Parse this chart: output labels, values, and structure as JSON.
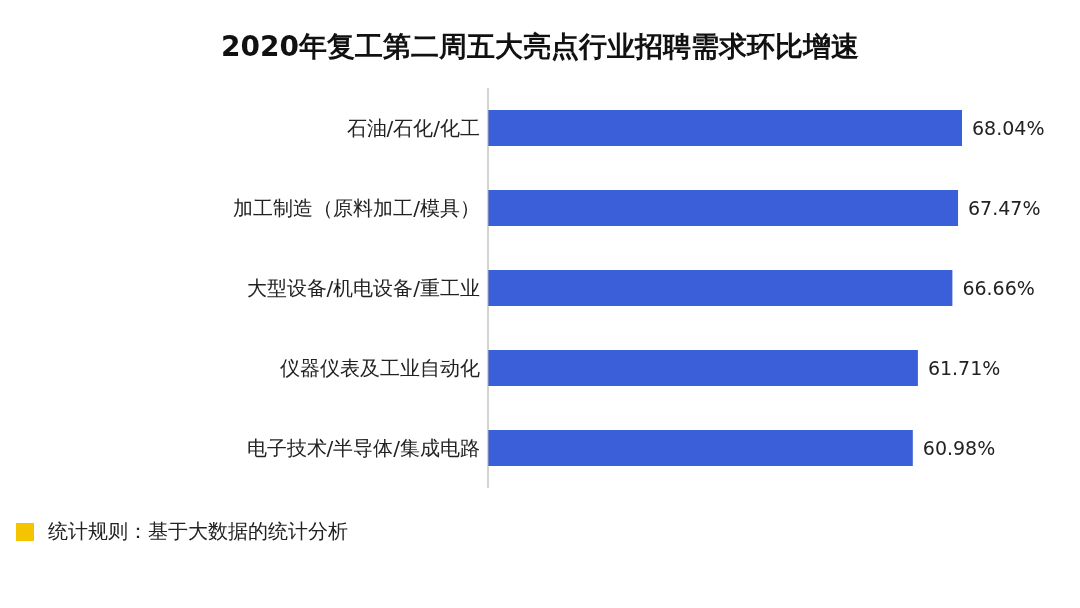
{
  "chart_data": {
    "type": "bar",
    "orientation": "horizontal",
    "title": "2020年复工第二周五大亮点行业招聘需求环比增速",
    "categories": [
      "石油/石化/化工",
      "加工制造（原料加工/模具）",
      "大型设备/机电设备/重工业",
      "仪器仪表及工业自动化",
      "电子技术/半导体/集成电路"
    ],
    "values": [
      68.04,
      67.47,
      66.66,
      61.71,
      60.98
    ],
    "value_labels": [
      "68.04%",
      "67.47%",
      "66.66%",
      "61.71%",
      "60.98%"
    ],
    "color": "#3b5fd8",
    "annotations": [
      "统计规则：基于大数据的统计分析"
    ]
  }
}
